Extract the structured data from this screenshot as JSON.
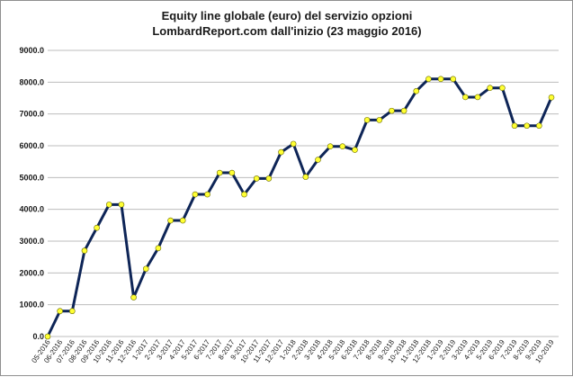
{
  "chart_data": {
    "type": "line",
    "title": "Equity line globale (euro) del servizio opzioni",
    "subtitle": "LombardReport.com dall'inizio (23 maggio 2016)",
    "xlabel": "",
    "ylabel": "",
    "ylim": [
      0,
      9000
    ],
    "yticks": [
      "0.0",
      "1000.0",
      "2000.0",
      "3000.0",
      "4000.0",
      "5000.0",
      "6000.0",
      "7000.0",
      "8000.0",
      "9000.0"
    ],
    "grid": true,
    "legend": "none",
    "line_color": "#0e2557",
    "marker_color": "#ffff33",
    "categories": [
      "05-2016",
      "06-2016",
      "07-2016",
      "08-2016",
      "09-2016",
      "10-2016",
      "11-2016",
      "12-2016",
      "1-2017",
      "2-2017",
      "3-2017",
      "4-2017",
      "5-2017",
      "6-2017",
      "7-2017",
      "8-2017",
      "9-2017",
      "10-2017",
      "11-2017",
      "12-2017",
      "1-2018",
      "2-2018",
      "3-2018",
      "4-2018",
      "5-2018",
      "6-2018",
      "7-2018",
      "8-2018",
      "9-2018",
      "10-2018",
      "11-2018",
      "12-2018",
      "1-2019",
      "2-2019",
      "3-2019",
      "4-2019",
      "5-2019",
      "6-2019",
      "7-2019",
      "8-2019",
      "9-2019",
      "10-2019"
    ],
    "values": [
      0,
      800,
      800,
      2700,
      3420,
      4150,
      4150,
      1230,
      2130,
      2780,
      3650,
      3650,
      4470,
      4470,
      5150,
      5150,
      4470,
      4970,
      4970,
      5800,
      6060,
      5020,
      5560,
      5980,
      5980,
      5870,
      6810,
      6810,
      7100,
      7100,
      7720,
      8100,
      8100,
      8100,
      7530,
      7530,
      7820,
      7820,
      6630,
      6630,
      6630,
      7520
    ]
  }
}
